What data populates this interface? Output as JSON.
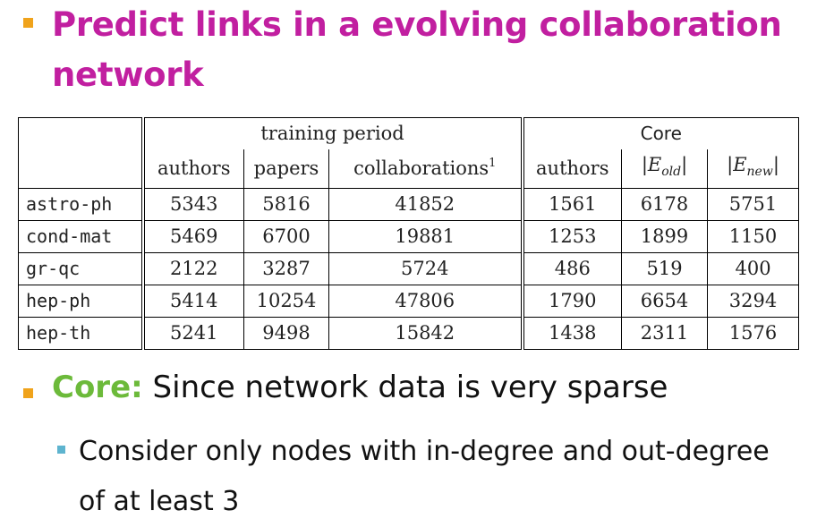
{
  "slide": {
    "title": "Predict links in a evolving collaboration network",
    "table": {
      "group_headers": {
        "training": "training period",
        "core": "Core"
      },
      "columns": [
        "authors",
        "papers",
        "collaborations",
        "authors",
        "|E_old|",
        "|E_new|"
      ],
      "column_parts": {
        "collab_sup": "1",
        "eold_var": "E",
        "eold_sub": "old",
        "enew_var": "E",
        "enew_sub": "new"
      },
      "rows": [
        {
          "name": "astro-ph",
          "values": [
            "5343",
            "5816",
            "41852",
            "1561",
            "6178",
            "5751"
          ]
        },
        {
          "name": "cond-mat",
          "values": [
            "5469",
            "6700",
            "19881",
            "1253",
            "1899",
            "1150"
          ]
        },
        {
          "name": "gr-qc",
          "values": [
            "2122",
            "3287",
            "5724",
            "486",
            "519",
            "400"
          ]
        },
        {
          "name": "hep-ph",
          "values": [
            "5414",
            "10254",
            "47806",
            "1790",
            "6654",
            "3294"
          ]
        },
        {
          "name": "hep-th",
          "values": [
            "5241",
            "9498",
            "15842",
            "1438",
            "2311",
            "1576"
          ]
        }
      ]
    },
    "bullets": {
      "core_label": "Core:",
      "core_text": " Since network data is very sparse",
      "sub": "Consider only nodes with in-degree and out-degree of at least 3"
    },
    "colors": {
      "title": "#c11fa0",
      "core_label": "#6cba3a",
      "bullet": "#f0a31b",
      "sub_bullet": "#5eb4cf"
    }
  }
}
